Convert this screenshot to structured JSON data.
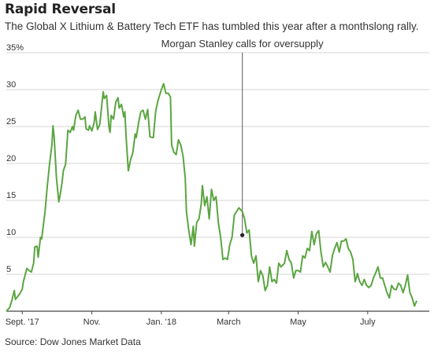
{
  "chart_data": {
    "type": "line",
    "title": "Rapid Reversal",
    "subtitle": "The Global X Lithium & Battery Tech ETF has tumbled this year after a monthslong rally.",
    "source": "Source: Dow Jones Market Data",
    "y_unit": "%",
    "ylim": [
      0,
      35
    ],
    "y_ticks": [
      0,
      5,
      10,
      15,
      20,
      25,
      30,
      35
    ],
    "y_tick_labels": [
      "",
      "5",
      "10",
      "15",
      "20",
      "25",
      "30",
      "35%"
    ],
    "x_ticks": [
      {
        "x": "2017-09-01",
        "label": "Sept. '17"
      },
      {
        "x": "2017-11-01",
        "label": "Nov."
      },
      {
        "x": "2018-01-01",
        "label": "Jan. '18"
      },
      {
        "x": "2018-03-01",
        "label": "March"
      },
      {
        "x": "2018-05-01",
        "label": "May"
      },
      {
        "x": "2018-07-01",
        "label": "July"
      }
    ],
    "xlim": [
      "2017-08-18",
      "2018-08-24"
    ],
    "grid": true,
    "line_color": "#5ba541",
    "annotation": {
      "x": "2018-03-13",
      "y": 10.3,
      "label": "Morgan Stanley calls for oversupply"
    },
    "series": [
      {
        "points": [
          [
            "2017-08-18",
            0.0
          ],
          [
            "2017-08-21",
            0.5
          ],
          [
            "2017-08-23",
            1.5
          ],
          [
            "2017-08-25",
            2.8
          ],
          [
            "2017-08-26",
            1.6
          ],
          [
            "2017-08-28",
            2.0
          ],
          [
            "2017-08-30",
            2.4
          ],
          [
            "2017-09-01",
            3.0
          ],
          [
            "2017-09-02",
            4.0
          ],
          [
            "2017-09-05",
            5.8
          ],
          [
            "2017-09-07",
            5.5
          ],
          [
            "2017-09-09",
            5.3
          ],
          [
            "2017-09-11",
            6.5
          ],
          [
            "2017-09-12",
            8.7
          ],
          [
            "2017-09-14",
            8.8
          ],
          [
            "2017-09-15",
            7.3
          ],
          [
            "2017-09-17",
            10.0
          ],
          [
            "2017-09-18",
            9.8
          ],
          [
            "2017-09-19",
            11.0
          ],
          [
            "2017-09-21",
            13.5
          ],
          [
            "2017-09-23",
            17.0
          ],
          [
            "2017-09-25",
            20.0
          ],
          [
            "2017-09-27",
            22.5
          ],
          [
            "2017-09-28",
            25.1
          ],
          [
            "2017-09-29",
            23.5
          ],
          [
            "2017-10-01",
            18.0
          ],
          [
            "2017-10-02",
            16.5
          ],
          [
            "2017-10-03",
            14.8
          ],
          [
            "2017-10-04",
            15.5
          ],
          [
            "2017-10-06",
            17.5
          ],
          [
            "2017-10-07",
            19.0
          ],
          [
            "2017-10-09",
            19.9
          ],
          [
            "2017-10-11",
            24.5
          ],
          [
            "2017-10-13",
            24.2
          ],
          [
            "2017-10-15",
            25.0
          ],
          [
            "2017-10-16",
            24.5
          ],
          [
            "2017-10-18",
            26.5
          ],
          [
            "2017-10-20",
            27.2
          ],
          [
            "2017-10-22",
            26.0
          ],
          [
            "2017-10-24",
            26.0
          ],
          [
            "2017-10-26",
            26.3
          ],
          [
            "2017-10-27",
            24.7
          ],
          [
            "2017-10-29",
            24.5
          ],
          [
            "2017-10-30",
            25.1
          ],
          [
            "2017-11-01",
            24.4
          ],
          [
            "2017-11-03",
            25.5
          ],
          [
            "2017-11-04",
            27.0
          ],
          [
            "2017-11-06",
            24.6
          ],
          [
            "2017-11-08",
            25.3
          ],
          [
            "2017-11-11",
            29.7
          ],
          [
            "2017-11-12",
            28.8
          ],
          [
            "2017-11-14",
            29.2
          ],
          [
            "2017-11-16",
            25.0
          ],
          [
            "2017-11-17",
            24.2
          ],
          [
            "2017-11-18",
            26.5
          ],
          [
            "2017-11-20",
            26.0
          ],
          [
            "2017-11-22",
            28.3
          ],
          [
            "2017-11-24",
            28.9
          ],
          [
            "2017-11-25",
            27.5
          ],
          [
            "2017-11-27",
            28.0
          ],
          [
            "2017-11-29",
            26.3
          ],
          [
            "2017-11-30",
            27.0
          ],
          [
            "2017-12-01",
            23.8
          ],
          [
            "2017-12-03",
            19.0
          ],
          [
            "2017-12-05",
            20.5
          ],
          [
            "2017-12-07",
            21.5
          ],
          [
            "2017-12-09",
            24.0
          ],
          [
            "2017-12-10",
            23.5
          ],
          [
            "2017-12-12",
            25.5
          ],
          [
            "2017-12-14",
            27.0
          ],
          [
            "2017-12-16",
            27.2
          ],
          [
            "2017-12-18",
            26.0
          ],
          [
            "2017-12-20",
            27.3
          ],
          [
            "2017-12-22",
            23.6
          ],
          [
            "2017-12-25",
            23.5
          ],
          [
            "2017-12-27",
            27.0
          ],
          [
            "2017-12-29",
            28.5
          ],
          [
            "2018-01-01",
            30.0
          ],
          [
            "2018-01-03",
            30.8
          ],
          [
            "2018-01-05",
            29.5
          ],
          [
            "2018-01-07",
            29.5
          ],
          [
            "2018-01-09",
            29.0
          ],
          [
            "2018-01-10",
            22.5
          ],
          [
            "2018-01-12",
            21.5
          ],
          [
            "2018-01-14",
            21.2
          ],
          [
            "2018-01-16",
            23.2
          ],
          [
            "2018-01-18",
            22.5
          ],
          [
            "2018-01-20",
            21.0
          ],
          [
            "2018-01-22",
            18.0
          ],
          [
            "2018-01-23",
            13.5
          ],
          [
            "2018-01-25",
            11.0
          ],
          [
            "2018-01-27",
            9.0
          ],
          [
            "2018-01-29",
            11.5
          ],
          [
            "2018-01-30",
            8.8
          ],
          [
            "2018-02-01",
            12.0
          ],
          [
            "2018-02-03",
            12.5
          ],
          [
            "2018-02-05",
            14.5
          ],
          [
            "2018-02-06",
            17.0
          ],
          [
            "2018-02-08",
            14.3
          ],
          [
            "2018-02-10",
            15.5
          ],
          [
            "2018-02-12",
            12.5
          ],
          [
            "2018-02-14",
            16.5
          ],
          [
            "2018-02-16",
            15.0
          ],
          [
            "2018-02-18",
            15.5
          ],
          [
            "2018-02-20",
            12.0
          ],
          [
            "2018-02-22",
            10.0
          ],
          [
            "2018-02-24",
            7.0
          ],
          [
            "2018-02-26",
            7.2
          ],
          [
            "2018-02-28",
            7.0
          ],
          [
            "2018-03-02",
            9.0
          ],
          [
            "2018-03-04",
            10.0
          ],
          [
            "2018-03-06",
            13.0
          ],
          [
            "2018-03-08",
            13.5
          ],
          [
            "2018-03-10",
            14.0
          ],
          [
            "2018-03-13",
            13.5
          ],
          [
            "2018-03-15",
            12.5
          ],
          [
            "2018-03-17",
            10.6
          ],
          [
            "2018-03-19",
            11.0
          ],
          [
            "2018-03-21",
            7.5
          ],
          [
            "2018-03-23",
            6.5
          ],
          [
            "2018-03-25",
            7.5
          ],
          [
            "2018-03-27",
            4.0
          ],
          [
            "2018-03-29",
            5.5
          ],
          [
            "2018-03-31",
            4.8
          ],
          [
            "2018-04-02",
            2.8
          ],
          [
            "2018-04-04",
            3.5
          ],
          [
            "2018-04-06",
            6.0
          ],
          [
            "2018-04-08",
            4.0
          ],
          [
            "2018-04-10",
            4.3
          ],
          [
            "2018-04-12",
            3.8
          ],
          [
            "2018-04-14",
            6.5
          ],
          [
            "2018-04-16",
            6.0
          ],
          [
            "2018-04-19",
            6.5
          ],
          [
            "2018-04-21",
            8.2
          ],
          [
            "2018-04-23",
            7.0
          ],
          [
            "2018-04-25",
            6.5
          ],
          [
            "2018-04-27",
            4.5
          ],
          [
            "2018-04-29",
            5.5
          ],
          [
            "2018-05-01",
            5.5
          ],
          [
            "2018-05-03",
            5.3
          ],
          [
            "2018-05-05",
            7.5
          ],
          [
            "2018-05-07",
            7.2
          ],
          [
            "2018-05-09",
            8.5
          ],
          [
            "2018-05-11",
            8.2
          ],
          [
            "2018-05-13",
            10.8
          ],
          [
            "2018-05-15",
            9.0
          ],
          [
            "2018-05-17",
            10.5
          ],
          [
            "2018-05-19",
            10.9
          ],
          [
            "2018-05-21",
            8.0
          ],
          [
            "2018-05-23",
            6.0
          ],
          [
            "2018-05-25",
            6.6
          ],
          [
            "2018-05-27",
            6.0
          ],
          [
            "2018-05-29",
            5.3
          ],
          [
            "2018-05-31",
            7.5
          ],
          [
            "2018-06-02",
            8.5
          ],
          [
            "2018-06-04",
            9.3
          ],
          [
            "2018-06-06",
            8.0
          ],
          [
            "2018-06-08",
            9.5
          ],
          [
            "2018-06-10",
            9.5
          ],
          [
            "2018-06-12",
            9.8
          ],
          [
            "2018-06-14",
            8.5
          ],
          [
            "2018-06-16",
            8.0
          ],
          [
            "2018-06-18",
            7.0
          ],
          [
            "2018-06-20",
            4.0
          ],
          [
            "2018-06-21",
            4.5
          ],
          [
            "2018-06-22",
            5.1
          ],
          [
            "2018-06-24",
            4.0
          ],
          [
            "2018-06-26",
            3.5
          ],
          [
            "2018-06-28",
            4.3
          ],
          [
            "2018-06-30",
            3.5
          ],
          [
            "2018-07-02",
            3.2
          ],
          [
            "2018-07-04",
            3.5
          ],
          [
            "2018-07-06",
            4.5
          ],
          [
            "2018-07-08",
            5.2
          ],
          [
            "2018-07-10",
            6.0
          ],
          [
            "2018-07-12",
            4.5
          ],
          [
            "2018-07-14",
            4.5
          ],
          [
            "2018-07-16",
            3.5
          ],
          [
            "2018-07-18",
            2.5
          ],
          [
            "2018-07-20",
            1.8
          ],
          [
            "2018-07-22",
            3.5
          ],
          [
            "2018-07-24",
            3.0
          ],
          [
            "2018-07-26",
            2.9
          ],
          [
            "2018-07-28",
            3.8
          ],
          [
            "2018-07-30",
            3.5
          ],
          [
            "2018-08-01",
            2.5
          ],
          [
            "2018-08-03",
            3.5
          ],
          [
            "2018-08-05",
            4.9
          ],
          [
            "2018-08-07",
            2.5
          ],
          [
            "2018-08-09",
            1.8
          ],
          [
            "2018-08-11",
            0.7
          ],
          [
            "2018-08-13",
            1.4
          ]
        ]
      }
    ]
  }
}
